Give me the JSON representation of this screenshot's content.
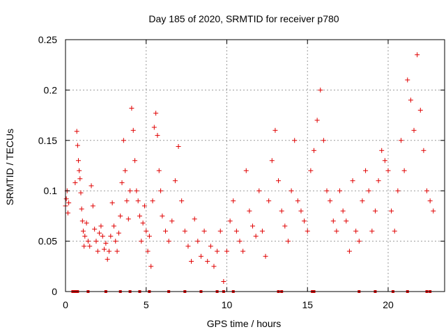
{
  "chart_data": {
    "type": "scatter",
    "title": "Day 185 of 2020, SRMTID for receiver p780",
    "xlabel": "GPS time / hours",
    "ylabel": "SRMTID / TECUs",
    "xlim": [
      0,
      23.5
    ],
    "ylim": [
      0,
      0.25
    ],
    "xticks": [
      0,
      5,
      10,
      15,
      20
    ],
    "xtick_labels": [
      "0",
      "5",
      "10",
      "15",
      "20"
    ],
    "yticks": [
      0,
      0.05,
      0.1,
      0.15,
      0.2,
      0.25
    ],
    "ytick_labels": [
      "0",
      "0.05",
      "0.1",
      "0.15",
      "0.2",
      "0.25"
    ],
    "grid": true,
    "marker": "+",
    "color": "#e00000",
    "series": [
      {
        "name": "SRMTID",
        "x": [
          0.0,
          0.05,
          0.1,
          0.15,
          0.2,
          0.6,
          0.7,
          0.75,
          0.8,
          0.85,
          0.9,
          0.95,
          1.0,
          1.05,
          1.1,
          1.15,
          1.2,
          1.3,
          1.4,
          1.5,
          1.6,
          1.7,
          1.8,
          1.9,
          2.0,
          2.1,
          2.2,
          2.3,
          2.4,
          2.5,
          2.6,
          2.7,
          2.8,
          2.9,
          3.0,
          3.1,
          3.2,
          3.3,
          3.4,
          3.5,
          3.6,
          3.7,
          3.8,
          3.9,
          4.0,
          4.1,
          4.2,
          4.3,
          4.4,
          4.5,
          4.6,
          4.7,
          4.8,
          4.9,
          5.0,
          5.1,
          5.2,
          5.3,
          5.4,
          5.5,
          5.6,
          5.7,
          5.8,
          5.9,
          6.0,
          6.2,
          6.4,
          6.6,
          6.8,
          7.0,
          7.2,
          7.4,
          7.6,
          7.8,
          8.0,
          8.2,
          8.4,
          8.6,
          8.8,
          9.0,
          9.2,
          9.4,
          9.6,
          9.8,
          10.0,
          10.2,
          10.4,
          10.6,
          10.8,
          11.0,
          11.2,
          11.4,
          11.6,
          11.8,
          12.0,
          12.2,
          12.4,
          12.6,
          12.8,
          13.0,
          13.2,
          13.4,
          13.6,
          13.8,
          14.0,
          14.2,
          14.4,
          14.6,
          14.8,
          15.0,
          15.2,
          15.4,
          15.6,
          15.8,
          16.0,
          16.2,
          16.4,
          16.6,
          16.8,
          17.0,
          17.2,
          17.4,
          17.6,
          17.8,
          18.0,
          18.2,
          18.4,
          18.6,
          18.8,
          19.0,
          19.2,
          19.4,
          19.6,
          19.8,
          20.0,
          20.2,
          20.4,
          20.6,
          20.8,
          21.0,
          21.2,
          21.4,
          21.6,
          21.8,
          22.0,
          22.2,
          22.4,
          22.6,
          22.8
        ],
        "y": [
          0.085,
          0.092,
          0.1,
          0.078,
          0.088,
          0.108,
          0.159,
          0.145,
          0.13,
          0.12,
          0.112,
          0.098,
          0.082,
          0.07,
          0.06,
          0.045,
          0.055,
          0.068,
          0.05,
          0.045,
          0.105,
          0.085,
          0.062,
          0.05,
          0.04,
          0.058,
          0.065,
          0.055,
          0.042,
          0.048,
          0.032,
          0.04,
          0.055,
          0.088,
          0.065,
          0.05,
          0.04,
          0.058,
          0.075,
          0.108,
          0.15,
          0.12,
          0.09,
          0.072,
          0.1,
          0.182,
          0.16,
          0.13,
          0.1,
          0.09,
          0.075,
          0.05,
          0.068,
          0.085,
          0.06,
          0.04,
          0.055,
          0.025,
          0.09,
          0.163,
          0.177,
          0.155,
          0.12,
          0.1,
          0.075,
          0.06,
          0.05,
          0.07,
          0.11,
          0.144,
          0.09,
          0.06,
          0.045,
          0.03,
          0.072,
          0.05,
          0.035,
          0.06,
          0.03,
          0.045,
          0.025,
          0.04,
          0.06,
          0.01,
          0.04,
          0.07,
          0.09,
          0.06,
          0.05,
          0.04,
          0.12,
          0.08,
          0.065,
          0.055,
          0.1,
          0.06,
          0.035,
          0.09,
          0.13,
          0.16,
          0.11,
          0.08,
          0.065,
          0.05,
          0.1,
          0.15,
          0.09,
          0.08,
          0.07,
          0.06,
          0.12,
          0.14,
          0.17,
          0.2,
          0.15,
          0.1,
          0.09,
          0.07,
          0.06,
          0.1,
          0.08,
          0.07,
          0.04,
          0.11,
          0.06,
          0.05,
          0.09,
          0.12,
          0.1,
          0.06,
          0.08,
          0.11,
          0.14,
          0.13,
          0.12,
          0.08,
          0.06,
          0.1,
          0.15,
          0.12,
          0.21,
          0.19,
          0.16,
          0.235,
          0.18,
          0.14,
          0.1,
          0.09,
          0.08
        ],
        "zero_x": [
          0.45,
          0.55,
          0.65,
          0.75,
          1.4,
          2.5,
          3.4,
          4.0,
          4.6,
          5.2,
          6.4,
          7.4,
          8.4,
          9.4,
          9.8,
          10.4,
          13.2,
          13.4,
          15.3,
          15.4,
          18.2,
          19.2,
          20.3,
          21.2,
          22.4,
          22.6
        ]
      }
    ]
  }
}
